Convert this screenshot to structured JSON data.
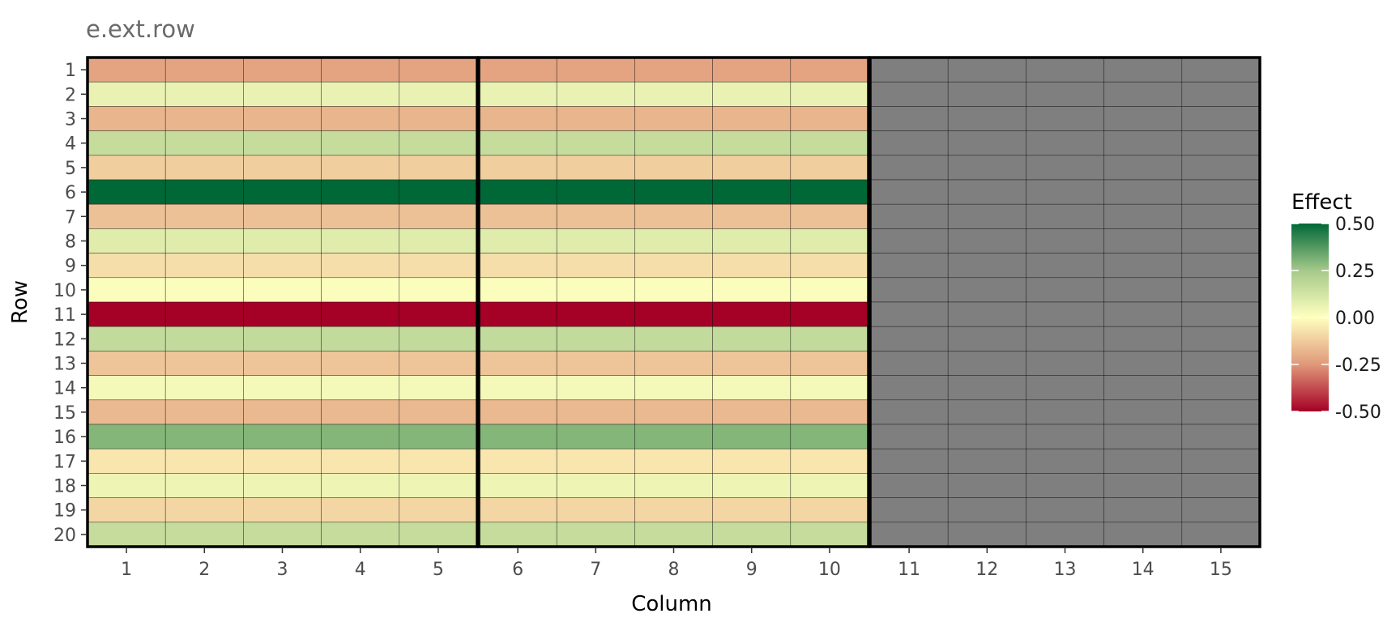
{
  "chart_data": {
    "type": "heatmap",
    "title": "e.ext.row",
    "xlabel": "Column",
    "ylabel": "Row",
    "rows": [
      "1",
      "2",
      "3",
      "4",
      "5",
      "6",
      "7",
      "8",
      "9",
      "10",
      "11",
      "12",
      "13",
      "14",
      "15",
      "16",
      "17",
      "18",
      "19",
      "20"
    ],
    "columns": [
      "1",
      "2",
      "3",
      "4",
      "5",
      "6",
      "7",
      "8",
      "9",
      "10",
      "11",
      "12",
      "13",
      "14",
      "15"
    ],
    "panels": [
      {
        "columns": [
          "1",
          "2",
          "3",
          "4",
          "5"
        ],
        "has_values": true
      },
      {
        "columns": [
          "6",
          "7",
          "8",
          "9",
          "10"
        ],
        "has_values": true
      },
      {
        "columns": [
          "11",
          "12",
          "13",
          "14",
          "15"
        ],
        "has_values": false
      }
    ],
    "row_effects": [
      -0.22,
      0.06,
      -0.18,
      0.16,
      -0.12,
      0.5,
      -0.15,
      0.09,
      -0.08,
      0.01,
      -0.5,
      0.17,
      -0.14,
      0.03,
      -0.17,
      0.3,
      -0.06,
      0.05,
      -0.1,
      0.16
    ],
    "missing_color": "#7f7f7f",
    "color_scale": {
      "low": "#a50026",
      "mid": "#ffffbf",
      "high": "#006837",
      "stops": [
        {
          "value": -0.5,
          "color": "#a50026"
        },
        {
          "value": -0.25,
          "color": "#e0987a"
        },
        {
          "value": 0.0,
          "color": "#ffffbf"
        },
        {
          "value": 0.25,
          "color": "#a5c98a"
        },
        {
          "value": 0.5,
          "color": "#006837"
        }
      ]
    },
    "legend": {
      "title": "Effect",
      "position": "right",
      "breaks": [
        0.5,
        0.25,
        0.0,
        -0.25,
        -0.5
      ],
      "labels": [
        "0.50",
        "0.25",
        "0.00",
        "-0.25",
        "-0.50"
      ]
    }
  }
}
